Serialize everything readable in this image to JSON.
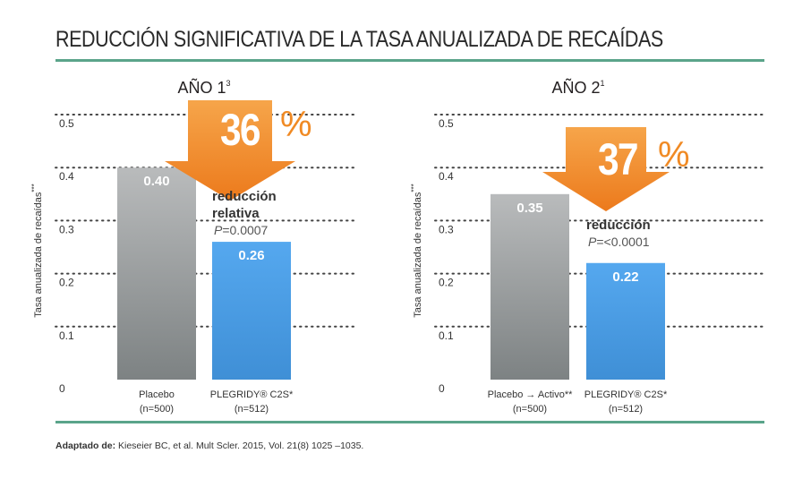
{
  "title": "REDUCCIÓN SIGNIFICATIVA DE LA TASA ANUALIZADA DE RECAÍDAS",
  "source": {
    "label": "Adaptado de:",
    "text": " Kieseier BC, et al. Mult Scler. 2015, Vol. 21(8) 1025 –1035."
  },
  "colors": {
    "rule": "#5aa48a",
    "placebo": "#9ea1a2",
    "treatment": "#4a9be0",
    "arrow": "#f08a24",
    "text": "#231f20"
  },
  "chart_data": [
    {
      "type": "bar",
      "title": "AÑO 1",
      "title_superscript": "3",
      "ylabel": "Tasa anualizada de recaídas",
      "ylabel_superscript": "***",
      "ylim": [
        0,
        0.5
      ],
      "yticks": [
        "0",
        "0.1",
        "0.2",
        "0.3",
        "0.4",
        "0.5"
      ],
      "grid": true,
      "categories": [
        {
          "line1": "Placebo",
          "line2": "(n=500)"
        },
        {
          "line1": "PLEGRIDY® C2S*",
          "line2": "(n=512)"
        }
      ],
      "values": [
        0.4,
        0.26
      ],
      "value_labels": [
        "0.40",
        "0.26"
      ],
      "callout": {
        "percent": "36",
        "percent_sign": "%",
        "text_lines": [
          "reducción",
          "relativa"
        ],
        "pvalue_italic": "P",
        "pvalue_rest": "=0.0007"
      }
    },
    {
      "type": "bar",
      "title": "AÑO 2",
      "title_superscript": "1",
      "ylabel": "Tasa anualizada de recaídas",
      "ylabel_superscript": "***",
      "ylim": [
        0,
        0.5
      ],
      "yticks": [
        "0",
        "0.1",
        "0.2",
        "0.3",
        "0.4",
        "0.5"
      ],
      "grid": true,
      "categories": [
        {
          "line1": "Placebo → Activo**",
          "line2": "(n=500)"
        },
        {
          "line1": "PLEGRIDY® C2S*",
          "line2": "(n=512)"
        }
      ],
      "values": [
        0.35,
        0.22
      ],
      "value_labels": [
        "0.35",
        "0.22"
      ],
      "callout": {
        "percent": "37",
        "percent_sign": "%",
        "text_lines": [
          "reducción"
        ],
        "pvalue_italic": "P",
        "pvalue_rest": "=<0.0001"
      }
    }
  ]
}
